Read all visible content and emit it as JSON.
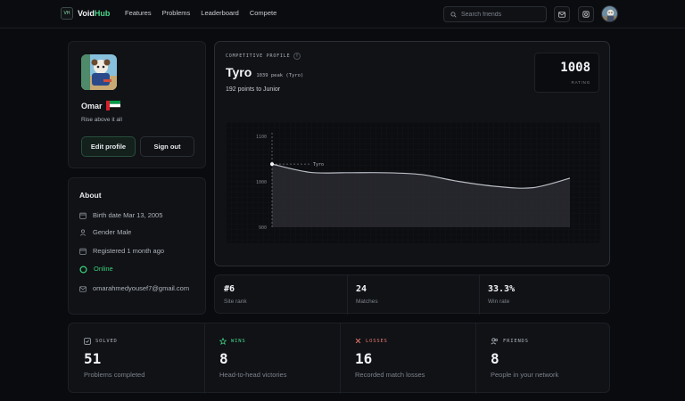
{
  "nav": {
    "logo_mark": "VH",
    "brand_a": "Void",
    "brand_b": "Hub",
    "links": [
      "Features",
      "Problems",
      "Leaderboard",
      "Compete"
    ],
    "search_placeholder": "Search friends"
  },
  "profile": {
    "name": "Omar",
    "bio": "Rise above it all",
    "edit_label": "Edit profile",
    "signout_label": "Sign out"
  },
  "about": {
    "title": "About",
    "birth": "Birth date Mar 13, 2005",
    "gender": "Gender Male",
    "registered": "Registered 1 month ago",
    "status": "Online",
    "email": "omarahmedyousef7@gmail.com"
  },
  "competitive": {
    "label": "COMPETITIVE PROFILE",
    "tier": "Tyro",
    "peak": "1039 peak (Tyro)",
    "to_next": "192 points to Junior",
    "rating": "1008",
    "rating_label": "RATING"
  },
  "chart_data": {
    "type": "area",
    "y_ticks": [
      "1100",
      "1000",
      "900"
    ],
    "ylim": [
      900,
      1100
    ],
    "marker_label": "Tyro",
    "x": [
      0,
      1,
      2,
      3,
      4,
      5,
      6,
      7,
      8
    ],
    "values": [
      1039,
      1021,
      1020,
      1020,
      1016,
      1001,
      990,
      987,
      1008
    ],
    "colors": {
      "line": "#b8bcc4",
      "fill": "#2a2c31"
    }
  },
  "stats": [
    {
      "value": "#6",
      "label": "Site rank"
    },
    {
      "value": "24",
      "label": "Matches"
    },
    {
      "value": "33.3%",
      "label": "Win rate"
    }
  ],
  "summary": [
    {
      "label": "SOLVED",
      "value": "51",
      "desc": "Problems completed",
      "color": "#aeb3bb",
      "icon": "checklist-icon"
    },
    {
      "label": "WINS",
      "value": "8",
      "desc": "Head-to-head victories",
      "color": "#47d688",
      "icon": "star-icon"
    },
    {
      "label": "LOSSES",
      "value": "16",
      "desc": "Recorded match losses",
      "color": "#e8766d",
      "icon": "x-icon"
    },
    {
      "label": "FRIENDS",
      "value": "8",
      "desc": "People in your network",
      "color": "#aeb3bb",
      "icon": "users-icon"
    }
  ]
}
